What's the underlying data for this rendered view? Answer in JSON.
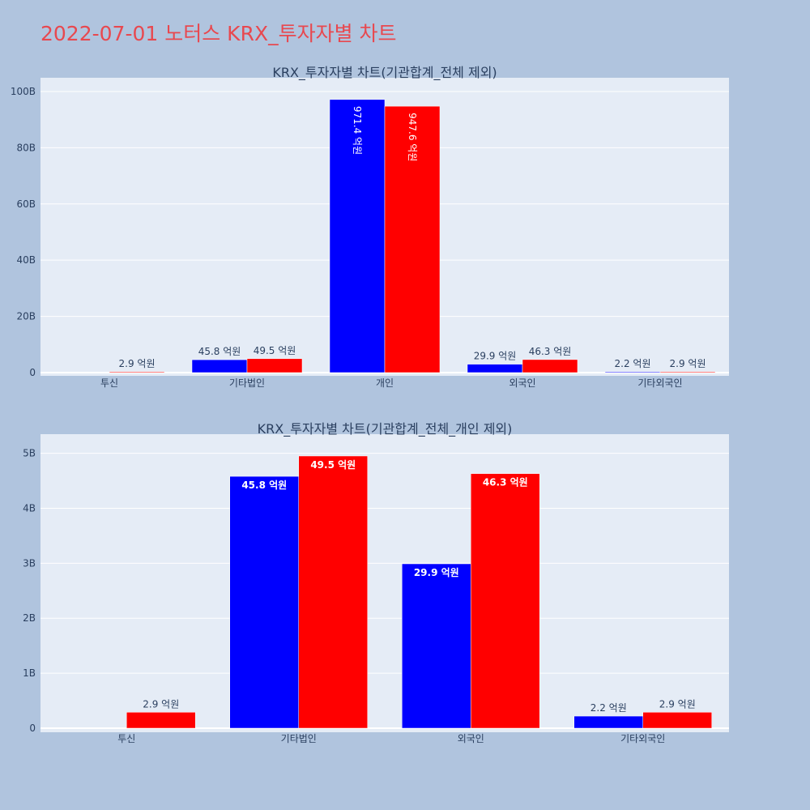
{
  "page": {
    "title": "2022-07-01 노터스 KRX_투자자별 차트",
    "background": "#b0c4de",
    "title_color": "#e8484f",
    "plot_background": "#e5ecf6",
    "gridline_color": "#ffffff",
    "text_color": "#2a3f5f"
  },
  "chart_data": [
    {
      "type": "bar",
      "title": "KRX_투자자별 차트(기관합계_전체 제외)",
      "categories": [
        "투신",
        "기타법인",
        "개인",
        "외국인",
        "기타외국인"
      ],
      "series": [
        {
          "color": "#0000ff",
          "values": [
            0,
            4.58,
            97.14,
            2.99,
            0.22
          ],
          "labels": [
            "",
            "45.8 억원",
            "971.4 억원",
            "29.9 억원",
            "2.2 억원"
          ]
        },
        {
          "color": "#ff0000",
          "values": [
            0.29,
            4.95,
            94.76,
            4.63,
            0.29
          ],
          "labels": [
            "2.9 억원",
            "49.5 억원",
            "947.6 억원",
            "46.3 억원",
            "2.9 억원"
          ]
        }
      ],
      "yticks": [
        0,
        20,
        40,
        60,
        80,
        100
      ],
      "ytick_labels": [
        "0",
        "20B",
        "40B",
        "60B",
        "80B",
        "100B"
      ],
      "ylim": [
        0,
        102
      ],
      "xlabel": "",
      "ylabel": "",
      "grid": true
    },
    {
      "type": "bar",
      "title": "KRX_투자자별 차트(기관합계_전체_개인 제외)",
      "categories": [
        "투신",
        "기타법인",
        "외국인",
        "기타외국인"
      ],
      "series": [
        {
          "color": "#0000ff",
          "values": [
            0,
            4.58,
            2.99,
            0.22
          ],
          "labels": [
            "",
            "45.8 억원",
            "29.9 억원",
            "2.2 억원"
          ]
        },
        {
          "color": "#ff0000",
          "values": [
            0.29,
            4.95,
            4.63,
            0.29
          ],
          "labels": [
            "2.9 억원",
            "49.5 억원",
            "46.3 억원",
            "2.9 억원"
          ]
        }
      ],
      "yticks": [
        0,
        1,
        2,
        3,
        4,
        5
      ],
      "ytick_labels": [
        "0",
        "1B",
        "2B",
        "3B",
        "4B",
        "5B"
      ],
      "ylim": [
        0,
        5.2
      ],
      "xlabel": "",
      "ylabel": "",
      "grid": true
    }
  ]
}
